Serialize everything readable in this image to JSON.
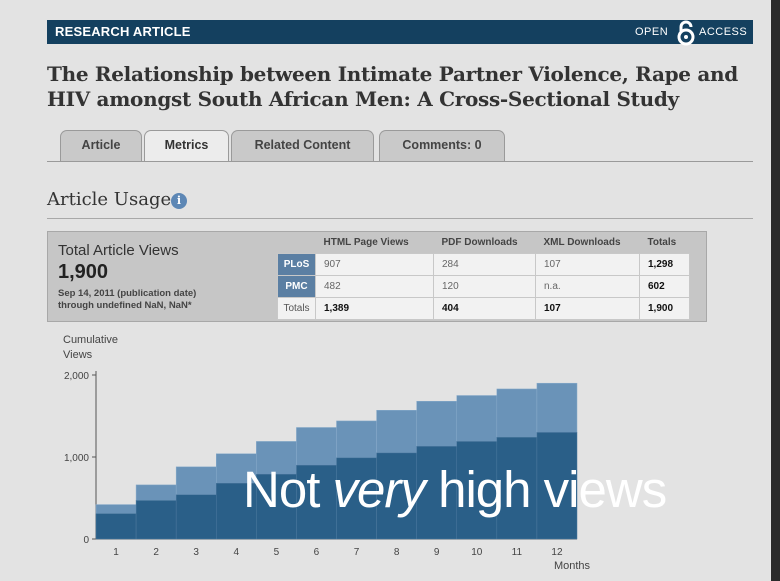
{
  "banner": {
    "label": "RESEARCH ARTICLE",
    "open": "OPEN",
    "access": "ACCESS"
  },
  "title": "The Relationship between Intimate Partner Violence, Rape and HIV amongst South African Men: A Cross-Sectional Study",
  "tabs": [
    {
      "label": "Article",
      "active": false
    },
    {
      "label": "Metrics",
      "active": true
    },
    {
      "label": "Related Content",
      "active": false
    },
    {
      "label": "Comments: 0",
      "active": false
    }
  ],
  "usage": {
    "heading": "Article Usage",
    "info_icon": "info-icon",
    "total_label": "Total Article Views",
    "total_value": "1,900",
    "date_line1": "Sep 14, 2011 (publication date)",
    "date_line2": "through undefined NaN, NaN*",
    "columns": [
      "",
      "HTML Page Views",
      "PDF Downloads",
      "XML Downloads",
      "Totals"
    ],
    "rows": [
      {
        "label": "PLoS",
        "html": "907",
        "pdf": "284",
        "xml": "107",
        "total": "1,298"
      },
      {
        "label": "PMC",
        "html": "482",
        "pdf": "120",
        "xml": "n.a.",
        "total": "602"
      },
      {
        "label": "Totals",
        "html": "1,389",
        "pdf": "404",
        "xml": "107",
        "total": "1,900"
      }
    ]
  },
  "chart_data": {
    "type": "bar",
    "ylabel": "Cumulative Views",
    "xlabel": "Months",
    "ylim": [
      0,
      2000
    ],
    "yticks": [
      "2,000",
      "1,000",
      "0"
    ],
    "categories": [
      "1",
      "2",
      "3",
      "4",
      "5",
      "6",
      "7",
      "8",
      "9",
      "10",
      "11",
      "12"
    ],
    "series": [
      {
        "values": [
          310,
          470,
          540,
          680,
          790,
          900,
          990,
          1050,
          1130,
          1190,
          1240,
          1300
        ]
      },
      {
        "values": [
          110,
          190,
          340,
          360,
          400,
          460,
          450,
          520,
          550,
          560,
          590,
          600
        ]
      }
    ],
    "colors": [
      "#2a5f88",
      "#6a93b8"
    ]
  },
  "overlay": {
    "pre": "Not ",
    "emph": "very",
    "post": " high views"
  }
}
